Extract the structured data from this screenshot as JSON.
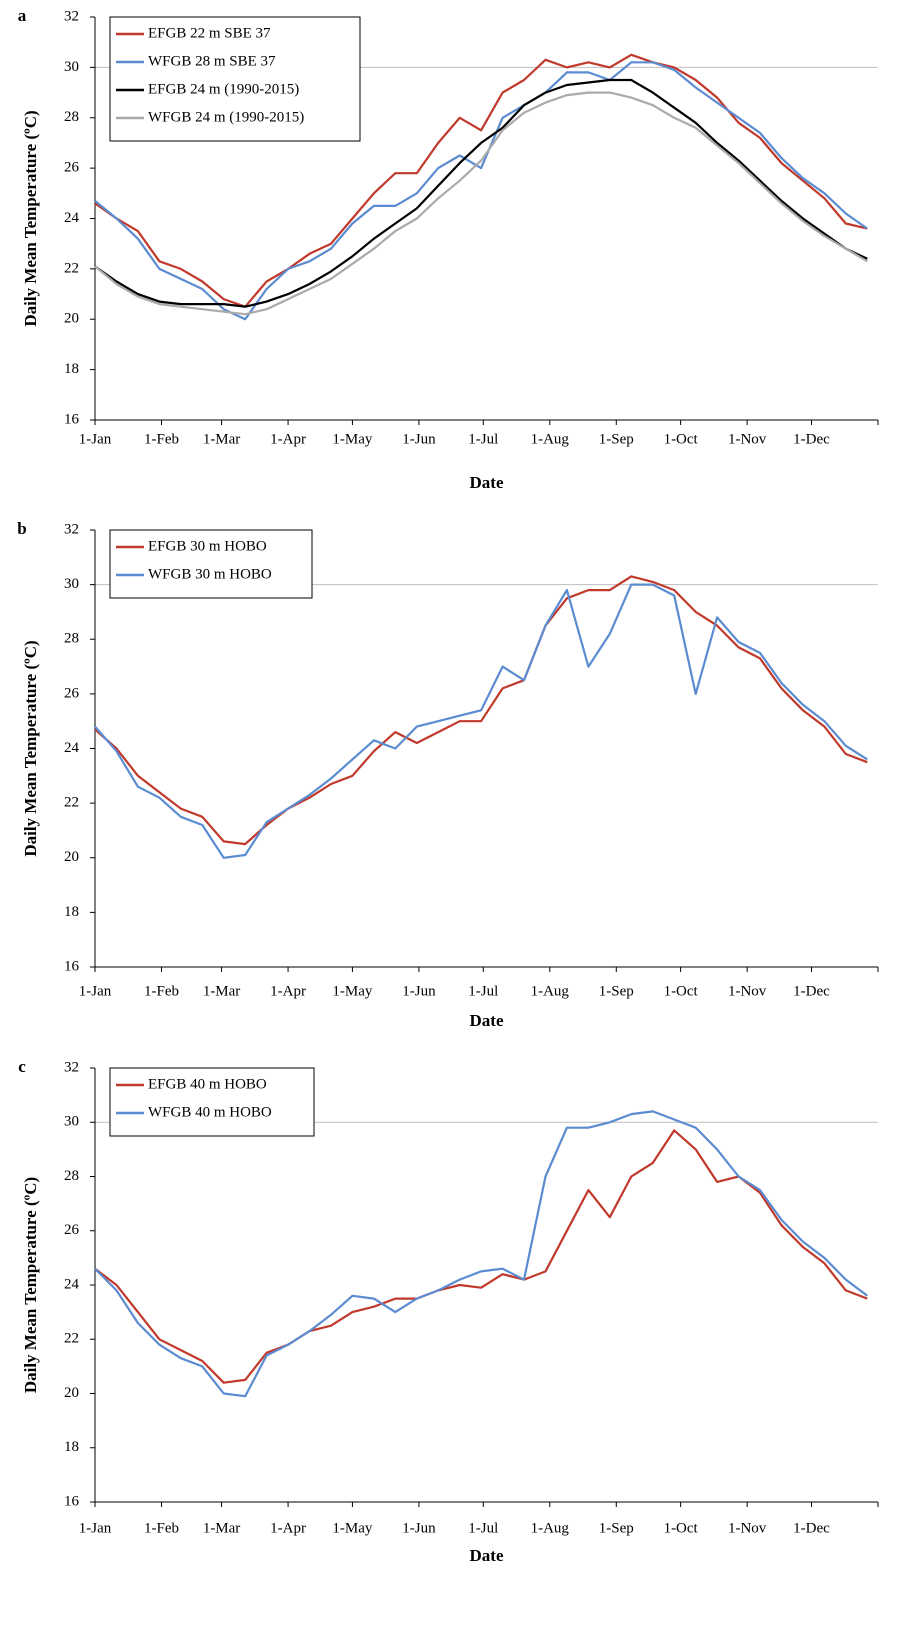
{
  "chart_data": [
    {
      "type": "line",
      "label": "a",
      "xlabel": "Date",
      "ylabel": "Daily Mean Temperature (ºC)",
      "xlim": [
        0,
        365
      ],
      "ylim": [
        16,
        32
      ],
      "yticks": [
        16,
        18,
        20,
        22,
        24,
        26,
        28,
        30,
        32
      ],
      "hline": 30,
      "xticks": [
        {
          "value": 0,
          "label": "1-Jan"
        },
        {
          "value": 31,
          "label": "1-Feb"
        },
        {
          "value": 59,
          "label": "1-Mar"
        },
        {
          "value": 90,
          "label": "1-Apr"
        },
        {
          "value": 120,
          "label": "1-May"
        },
        {
          "value": 151,
          "label": "1-Jun"
        },
        {
          "value": 181,
          "label": "1-Jul"
        },
        {
          "value": 212,
          "label": "1-Aug"
        },
        {
          "value": 243,
          "label": "1-Sep"
        },
        {
          "value": 273,
          "label": "1-Oct"
        },
        {
          "value": 304,
          "label": "1-Nov"
        },
        {
          "value": 334,
          "label": "1-Dec"
        }
      ],
      "legend": "upper left",
      "x": [
        0,
        10,
        20,
        30,
        40,
        50,
        60,
        70,
        80,
        90,
        100,
        110,
        120,
        130,
        140,
        150,
        160,
        170,
        180,
        190,
        200,
        210,
        220,
        230,
        240,
        250,
        260,
        270,
        280,
        290,
        300,
        310,
        320,
        330,
        340,
        350,
        360
      ],
      "series": [
        {
          "name": "EFGB 22 m SBE 37",
          "color": "#c0392b",
          "values": [
            24.6,
            24.0,
            23.5,
            22.3,
            22.0,
            21.5,
            20.8,
            20.5,
            21.5,
            22.0,
            22.6,
            23.0,
            24.0,
            25.0,
            25.8,
            25.8,
            27.0,
            28.0,
            27.5,
            29.0,
            29.5,
            30.3,
            30.0,
            30.2,
            30.0,
            30.5,
            30.2,
            30.0,
            29.5,
            28.8,
            27.8,
            27.2,
            26.2,
            25.5,
            24.8,
            23.8,
            23.6
          ]
        },
        {
          "name": "WFGB 28 m SBE 37",
          "color": "#5b8bd0",
          "values": [
            24.7,
            24.0,
            23.2,
            22.0,
            21.6,
            21.2,
            20.4,
            20.0,
            21.2,
            22.0,
            22.3,
            22.8,
            23.8,
            24.5,
            24.5,
            25.0,
            26.0,
            26.5,
            26.0,
            28.0,
            28.5,
            29.0,
            29.8,
            29.8,
            29.5,
            30.2,
            30.2,
            29.9,
            29.2,
            28.6,
            28.0,
            27.4,
            26.4,
            25.6,
            25.0,
            24.2,
            23.6
          ]
        },
        {
          "name": "EFGB 24 m (1990-2015)",
          "color": "#000000",
          "values": [
            22.1,
            21.5,
            21.0,
            20.7,
            20.6,
            20.6,
            20.6,
            20.5,
            20.7,
            21.0,
            21.4,
            21.9,
            22.5,
            23.2,
            23.8,
            24.4,
            25.3,
            26.2,
            27.0,
            27.6,
            28.5,
            29.0,
            29.3,
            29.4,
            29.5,
            29.5,
            29.0,
            28.4,
            27.8,
            27.0,
            26.3,
            25.5,
            24.7,
            24.0,
            23.4,
            22.8,
            22.4
          ]
        },
        {
          "name": "WFGB 24 m (1990-2015)",
          "color": "#aaaaaa",
          "values": [
            22.1,
            21.4,
            20.9,
            20.6,
            20.5,
            20.4,
            20.3,
            20.2,
            20.4,
            20.8,
            21.2,
            21.6,
            22.2,
            22.8,
            23.5,
            24.0,
            24.8,
            25.5,
            26.3,
            27.5,
            28.2,
            28.6,
            28.9,
            29.0,
            29.0,
            28.8,
            28.5,
            28.0,
            27.6,
            26.9,
            26.2,
            25.4,
            24.6,
            23.9,
            23.3,
            22.8,
            22.3
          ]
        }
      ]
    },
    {
      "type": "line",
      "label": "b",
      "xlabel": "Date",
      "ylabel": "Daily Mean Temperature (ºC)",
      "xlim": [
        0,
        365
      ],
      "ylim": [
        16,
        32
      ],
      "yticks": [
        16,
        18,
        20,
        22,
        24,
        26,
        28,
        30,
        32
      ],
      "hline": 30,
      "xticks": [
        {
          "value": 0,
          "label": "1-Jan"
        },
        {
          "value": 31,
          "label": "1-Feb"
        },
        {
          "value": 59,
          "label": "1-Mar"
        },
        {
          "value": 90,
          "label": "1-Apr"
        },
        {
          "value": 120,
          "label": "1-May"
        },
        {
          "value": 151,
          "label": "1-Jun"
        },
        {
          "value": 181,
          "label": "1-Jul"
        },
        {
          "value": 212,
          "label": "1-Aug"
        },
        {
          "value": 243,
          "label": "1-Sep"
        },
        {
          "value": 273,
          "label": "1-Oct"
        },
        {
          "value": 304,
          "label": "1-Nov"
        },
        {
          "value": 334,
          "label": "1-Dec"
        }
      ],
      "legend": "upper left",
      "x": [
        0,
        10,
        20,
        30,
        40,
        50,
        60,
        70,
        80,
        90,
        100,
        110,
        120,
        130,
        140,
        150,
        160,
        170,
        180,
        190,
        200,
        210,
        220,
        230,
        240,
        250,
        260,
        270,
        280,
        290,
        300,
        310,
        320,
        330,
        340,
        350,
        360
      ],
      "series": [
        {
          "name": "EFGB 30 m HOBO",
          "color": "#c0392b",
          "values": [
            24.7,
            24.0,
            23.0,
            22.4,
            21.8,
            21.5,
            20.6,
            20.5,
            21.2,
            21.8,
            22.2,
            22.7,
            23.0,
            23.9,
            24.6,
            24.2,
            24.6,
            25.0,
            25.0,
            26.2,
            26.5,
            28.5,
            29.5,
            29.8,
            29.8,
            30.3,
            30.1,
            29.8,
            29.0,
            28.5,
            27.7,
            27.3,
            26.2,
            25.4,
            24.8,
            23.8,
            23.5
          ]
        },
        {
          "name": "WFGB 30 m HOBO",
          "color": "#5b8bd0",
          "values": [
            24.8,
            23.9,
            22.6,
            22.2,
            21.5,
            21.2,
            20.0,
            20.1,
            21.3,
            21.8,
            22.3,
            22.9,
            23.6,
            24.3,
            24.0,
            24.8,
            25.0,
            25.2,
            25.4,
            27.0,
            26.5,
            28.5,
            29.8,
            27.0,
            28.2,
            30.0,
            30.0,
            29.6,
            26.0,
            28.8,
            27.9,
            27.5,
            26.4,
            25.6,
            25.0,
            24.1,
            23.6
          ]
        }
      ]
    },
    {
      "type": "line",
      "label": "c",
      "xlabel": "Date",
      "ylabel": "Daily Mean Temperature (ºC)",
      "xlim": [
        0,
        365
      ],
      "ylim": [
        16,
        32
      ],
      "yticks": [
        16,
        18,
        20,
        22,
        24,
        26,
        28,
        30,
        32
      ],
      "hline": 30,
      "xticks": [
        {
          "value": 0,
          "label": "1-Jan"
        },
        {
          "value": 31,
          "label": "1-Feb"
        },
        {
          "value": 59,
          "label": "1-Mar"
        },
        {
          "value": 90,
          "label": "1-Apr"
        },
        {
          "value": 120,
          "label": "1-May"
        },
        {
          "value": 151,
          "label": "1-Jun"
        },
        {
          "value": 181,
          "label": "1-Jul"
        },
        {
          "value": 212,
          "label": "1-Aug"
        },
        {
          "value": 243,
          "label": "1-Sep"
        },
        {
          "value": 273,
          "label": "1-Oct"
        },
        {
          "value": 304,
          "label": "1-Nov"
        },
        {
          "value": 334,
          "label": "1-Dec"
        }
      ],
      "legend": "upper left",
      "x": [
        0,
        10,
        20,
        30,
        40,
        50,
        60,
        70,
        80,
        90,
        100,
        110,
        120,
        130,
        140,
        150,
        160,
        170,
        180,
        190,
        200,
        210,
        220,
        230,
        240,
        250,
        260,
        270,
        280,
        290,
        300,
        310,
        320,
        330,
        340,
        350,
        360
      ],
      "series": [
        {
          "name": "EFGB 40 m HOBO",
          "color": "#c0392b",
          "values": [
            24.6,
            24.0,
            23.0,
            22.0,
            21.6,
            21.2,
            20.4,
            20.5,
            21.5,
            21.8,
            22.3,
            22.5,
            23.0,
            23.2,
            23.5,
            23.5,
            23.8,
            24.0,
            23.9,
            24.4,
            24.2,
            24.5,
            26.0,
            27.5,
            26.5,
            28.0,
            28.5,
            29.7,
            29.0,
            27.8,
            28.0,
            27.4,
            26.2,
            25.4,
            24.8,
            23.8,
            23.5
          ]
        },
        {
          "name": "WFGB 40 m HOBO",
          "color": "#5b8bd0",
          "values": [
            24.6,
            23.8,
            22.6,
            21.8,
            21.3,
            21.0,
            20.0,
            19.9,
            21.4,
            21.8,
            22.3,
            22.9,
            23.6,
            23.5,
            23.0,
            23.5,
            23.8,
            24.2,
            24.5,
            24.6,
            24.2,
            28.0,
            29.8,
            29.8,
            30.0,
            30.3,
            30.4,
            30.1,
            29.8,
            29.0,
            28.0,
            27.5,
            26.4,
            25.6,
            25.0,
            24.2,
            23.6
          ]
        }
      ]
    }
  ]
}
